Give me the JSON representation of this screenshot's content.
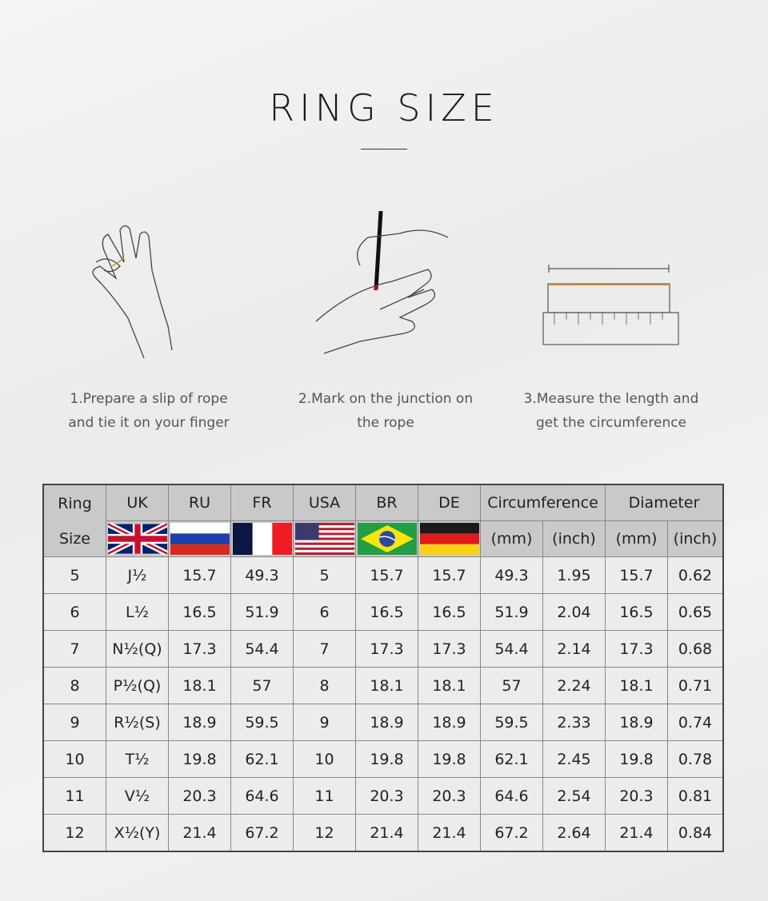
{
  "title": "RING SIZE",
  "steps": [
    {
      "icon": "hand-with-rope-icon",
      "text": "1.Prepare a slip of rope and tie it on your finger"
    },
    {
      "icon": "mark-junction-icon",
      "text": "2.Mark on the junction on the rope"
    },
    {
      "icon": "ruler-measure-icon",
      "text": "3.Measure the length and get the circumference"
    }
  ],
  "table": {
    "ring_size_header": "Ring Size",
    "countries": [
      {
        "label": "UK",
        "flag": "uk-flag-icon"
      },
      {
        "label": "RU",
        "flag": "russia-flag-icon"
      },
      {
        "label": "FR",
        "flag": "france-flag-icon"
      },
      {
        "label": "USA",
        "flag": "usa-flag-icon"
      },
      {
        "label": "BR",
        "flag": "brazil-flag-icon"
      },
      {
        "label": "DE",
        "flag": "germany-flag-icon"
      }
    ],
    "circumference": "Circumference",
    "diameter": "Diameter",
    "mm": "(mm)",
    "inch": "(inch)",
    "rows": [
      [
        "5",
        "J½",
        "15.7",
        "49.3",
        "5",
        "15.7",
        "15.7",
        "49.3",
        "1.95",
        "15.7",
        "0.62"
      ],
      [
        "6",
        "L½",
        "16.5",
        "51.9",
        "6",
        "16.5",
        "16.5",
        "51.9",
        "2.04",
        "16.5",
        "0.65"
      ],
      [
        "7",
        "N½(Q)",
        "17.3",
        "54.4",
        "7",
        "17.3",
        "17.3",
        "54.4",
        "2.14",
        "17.3",
        "0.68"
      ],
      [
        "8",
        "P½(Q)",
        "18.1",
        "57",
        "8",
        "18.1",
        "18.1",
        "57",
        "2.24",
        "18.1",
        "0.71"
      ],
      [
        "9",
        "R½(S)",
        "18.9",
        "59.5",
        "9",
        "18.9",
        "18.9",
        "59.5",
        "2.33",
        "18.9",
        "0.74"
      ],
      [
        "10",
        "T½",
        "19.8",
        "62.1",
        "10",
        "19.8",
        "19.8",
        "62.1",
        "2.45",
        "19.8",
        "0.78"
      ],
      [
        "11",
        "V½",
        "20.3",
        "64.6",
        "11",
        "20.3",
        "20.3",
        "64.6",
        "2.54",
        "20.3",
        "0.81"
      ],
      [
        "12",
        "X½(Y)",
        "21.4",
        "67.2",
        "12",
        "21.4",
        "21.4",
        "67.2",
        "2.64",
        "21.4",
        "0.84"
      ]
    ]
  }
}
